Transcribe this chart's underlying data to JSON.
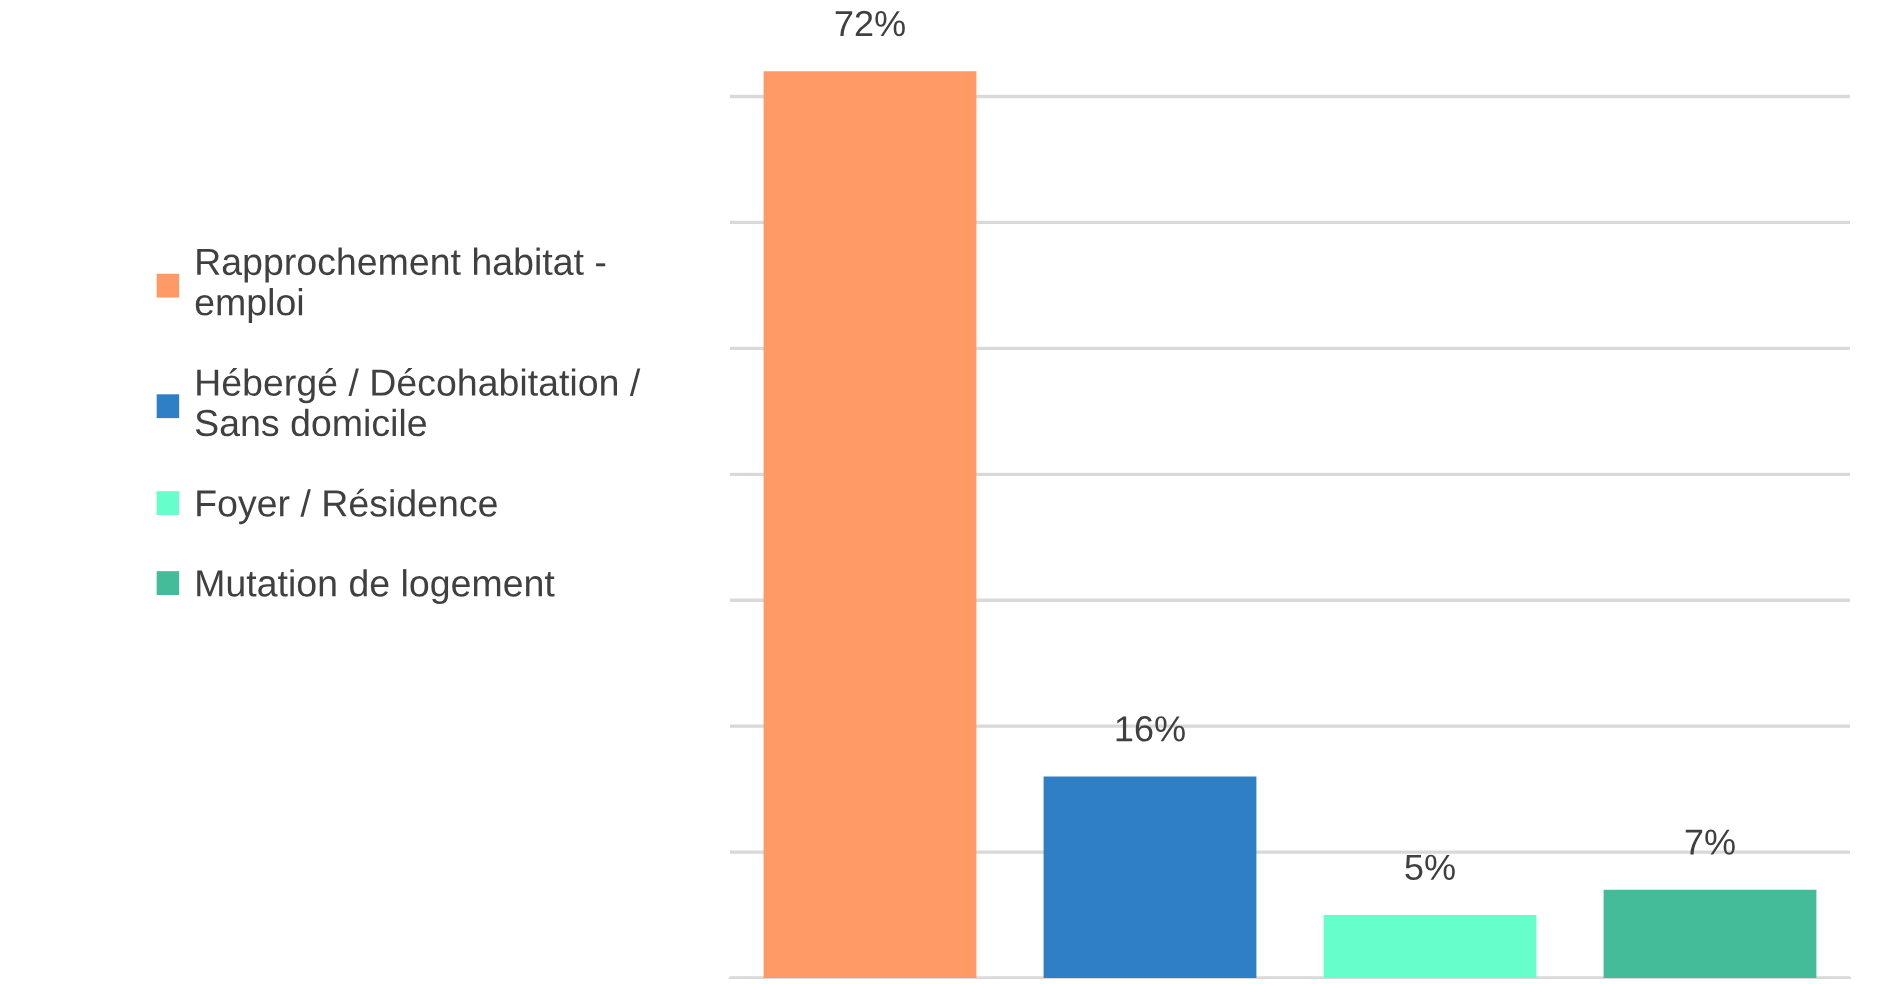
{
  "chart_data": {
    "type": "bar",
    "categories": [
      null
    ],
    "series": [
      {
        "name": "Rapprochement habitat -\nemploi",
        "color": "#ff9966",
        "values": [
          72
        ],
        "value_labels": [
          "72%"
        ]
      },
      {
        "name": "Hébergé / Décohabitation /\nSans domicile",
        "color": "#2e7fc6",
        "values": [
          16
        ],
        "value_labels": [
          "16%"
        ]
      },
      {
        "name": "Foyer / Résidence",
        "color": "#66ffcc",
        "values": [
          5
        ],
        "value_labels": [
          "5%"
        ]
      },
      {
        "name": "Mutation de logement",
        "color": "#44bb99",
        "values": [
          7
        ],
        "value_labels": [
          "7%"
        ]
      }
    ],
    "grid": "y",
    "legend": "left",
    "tick_labels": false
  }
}
